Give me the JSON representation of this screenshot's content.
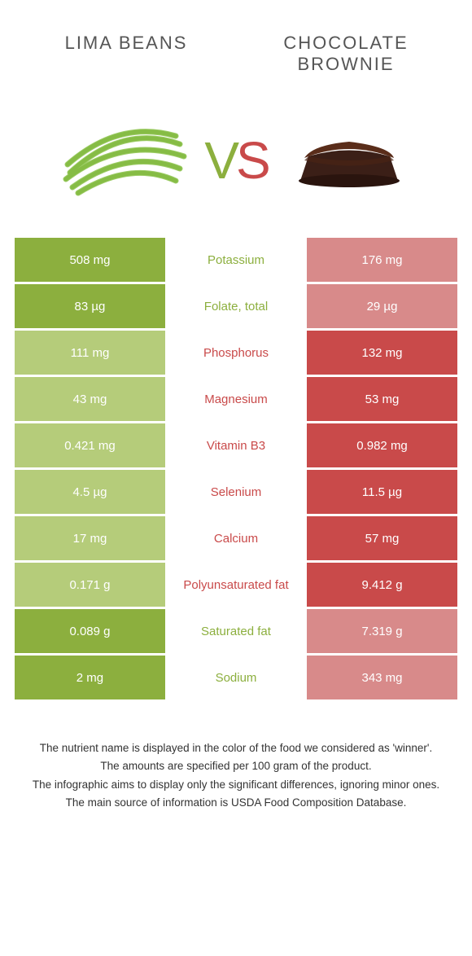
{
  "food_left": {
    "name": "LIMA BEANS"
  },
  "food_right": {
    "name": "CHOCOLATE BROWNIE"
  },
  "vs": {
    "v": "V",
    "s": "S"
  },
  "colors": {
    "left_win": "#8caf3e",
    "left_lose": "#b5cc7a",
    "right_win": "#c94a4a",
    "right_lose": "#d88a8a",
    "mid_text_left": "#8caf3e",
    "mid_text_right": "#c94a4a"
  },
  "rows": [
    {
      "nutrient": "Potassium",
      "left": "508 mg",
      "right": "176 mg",
      "winner": "left"
    },
    {
      "nutrient": "Folate, total",
      "left": "83 µg",
      "right": "29 µg",
      "winner": "left"
    },
    {
      "nutrient": "Phosphorus",
      "left": "111 mg",
      "right": "132 mg",
      "winner": "right"
    },
    {
      "nutrient": "Magnesium",
      "left": "43 mg",
      "right": "53 mg",
      "winner": "right"
    },
    {
      "nutrient": "Vitamin B3",
      "left": "0.421 mg",
      "right": "0.982 mg",
      "winner": "right"
    },
    {
      "nutrient": "Selenium",
      "left": "4.5 µg",
      "right": "11.5 µg",
      "winner": "right"
    },
    {
      "nutrient": "Calcium",
      "left": "17 mg",
      "right": "57 mg",
      "winner": "right"
    },
    {
      "nutrient": "Polyunsaturated fat",
      "left": "0.171 g",
      "right": "9.412 g",
      "winner": "right"
    },
    {
      "nutrient": "Saturated fat",
      "left": "0.089 g",
      "right": "7.319 g",
      "winner": "left"
    },
    {
      "nutrient": "Sodium",
      "left": "2 mg",
      "right": "343 mg",
      "winner": "left"
    }
  ],
  "footer": {
    "line1": "The nutrient name is displayed in the color of the food we considered as 'winner'.",
    "line2": "The amounts are specified per 100 gram of the product.",
    "line3": "The infographic aims to display only the significant differences, ignoring minor ones.",
    "line4": "The main source of information is USDA Food Composition Database."
  }
}
